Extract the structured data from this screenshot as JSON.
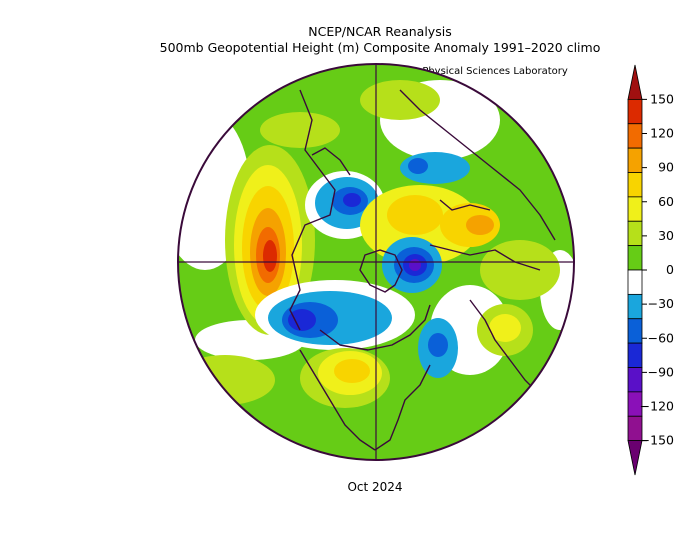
{
  "header": {
    "title": "NCEP/NCAR Reanalysis",
    "subtitle": "500mb Geopotential Height (m) Composite Anomaly 1991–2020 climo",
    "credit": "NOAA Physical Sciences Laboratory"
  },
  "footer": {
    "period": "Oct 2024"
  },
  "colorbar": {
    "labels": [
      "150",
      "120",
      "90",
      "60",
      "30",
      "0",
      "−30",
      "−60",
      "−90",
      "−120",
      "−150"
    ],
    "colors": [
      "#a01010",
      "#dc2a00",
      "#f26b00",
      "#f5a200",
      "#f8d400",
      "#f0f01a",
      "#b6e01a",
      "#66cc16",
      "#ffffff",
      "#1aa6dd",
      "#0a60d8",
      "#1a28d6",
      "#5a10c8",
      "#8a10b8",
      "#901090",
      "#6a0070"
    ]
  },
  "map": {
    "projection": "north-polar-stereographic",
    "ocean_color": "#66cc16",
    "anomalies": [
      {
        "name": "eastern-pacific-ridge",
        "value": 150,
        "color": "#dc2a00"
      },
      {
        "name": "canada-trough",
        "value": -60,
        "color": "#1a28d6"
      },
      {
        "name": "siberia-trough",
        "value": -90,
        "color": "#5a10c8"
      },
      {
        "name": "arctic-trough",
        "value": -60,
        "color": "#1a28d6"
      },
      {
        "name": "europe-ridge",
        "value": 60,
        "color": "#f5a200"
      },
      {
        "name": "central-asia-ridge",
        "value": 60,
        "color": "#f8d400"
      },
      {
        "name": "west-africa-ridge",
        "value": 60,
        "color": "#f0f01a"
      },
      {
        "name": "north-atlantic-trough",
        "value": -30,
        "color": "#1aa6dd"
      },
      {
        "name": "central-us-ridge",
        "value": 90,
        "color": "#f8d400"
      }
    ]
  }
}
